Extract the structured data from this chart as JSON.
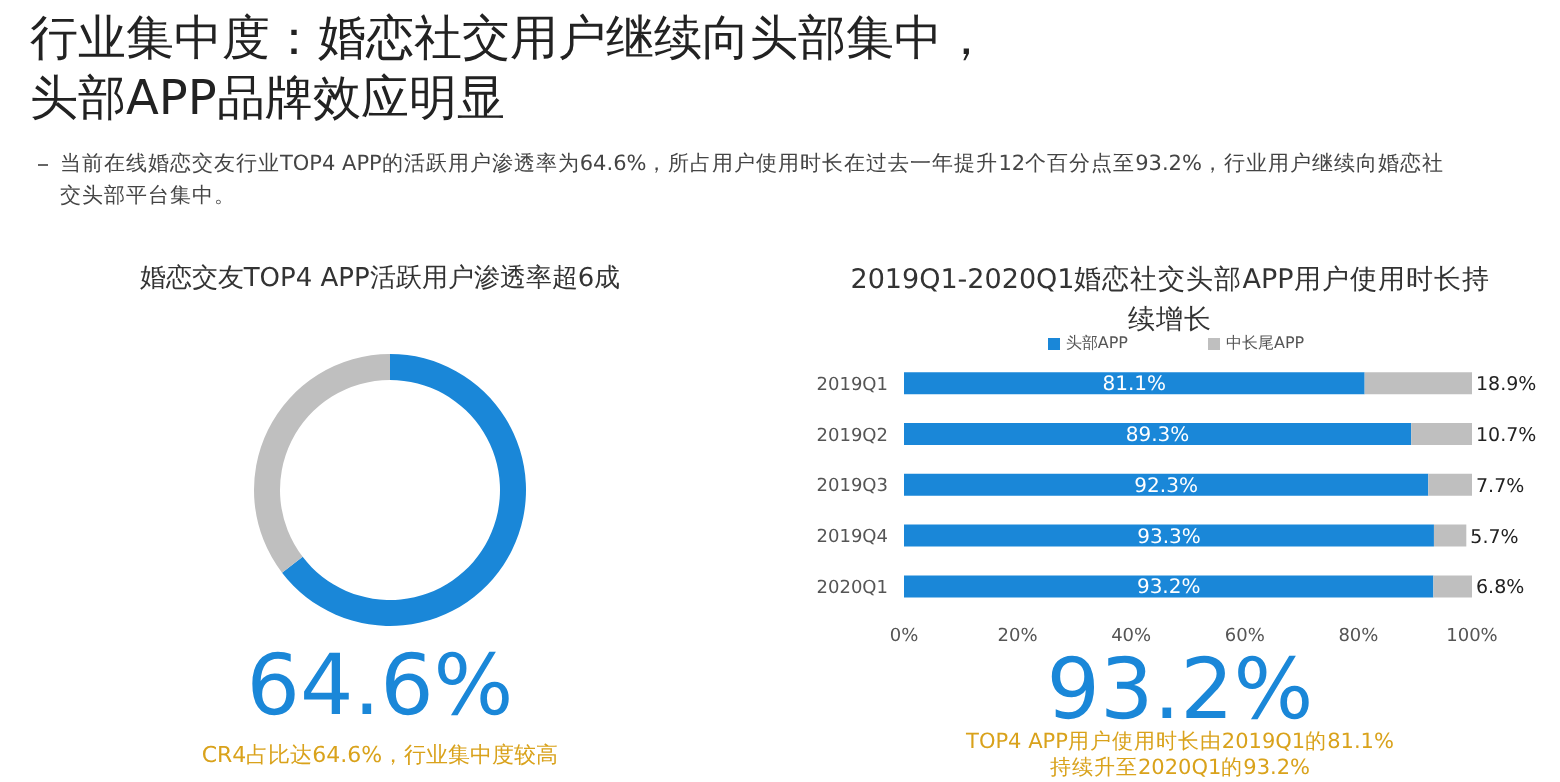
{
  "chart_data": [
    {
      "type": "donut",
      "title": "婚恋交友TOP4 APP活跃用户渗透率超6成",
      "categories": [
        null,
        null
      ],
      "values": [
        64.6,
        35.4
      ],
      "colors": [
        "#1a87d8",
        "#bfbfbf"
      ],
      "legend": false,
      "annotations": [
        "行业集中度：婚恋社交用户继续向头部集中，",
        "头部APP品牌效应明显",
        "当前在线婚恋交友行业TOP4 APP的活跃用户渗透率为64.6%，所占用户使用时长在过去一年提升12个百分点至93.2%，行业用户继续向婚恋社交头部平台集中。",
        "64.6%",
        "CR4占比达64.6%，行业集中度较高"
      ]
    },
    {
      "type": "bar",
      "orientation": "horizontal",
      "stacked": true,
      "title": "2019Q1-2020Q1婚恋社交头部APP用户使用时长持续增长",
      "categories": [
        "2019Q1",
        "2019Q2",
        "2019Q3",
        "2019Q4",
        "2020Q1"
      ],
      "series": [
        {
          "name": "头部APP",
          "color": "#1a87d8",
          "values": [
            81.1,
            89.3,
            92.3,
            93.3,
            93.2
          ],
          "value_labels": [
            "81.1%",
            "89.3%",
            "92.3%",
            "93.3%",
            "93.2%"
          ]
        },
        {
          "name": "中长尾APP",
          "color": "#bfbfbf",
          "values": [
            18.9,
            10.7,
            7.7,
            5.7,
            6.8
          ],
          "value_labels": [
            "18.9%",
            "10.7%",
            "7.7%",
            "5.7%",
            "6.8%"
          ]
        }
      ],
      "xlim": [
        0,
        100
      ],
      "xticks": [
        {
          "value": 0,
          "label": "0%"
        },
        {
          "value": 20,
          "label": "20%"
        },
        {
          "value": 40,
          "label": "40%"
        },
        {
          "value": 60,
          "label": "60%"
        },
        {
          "value": 80,
          "label": "80%"
        },
        {
          "value": 100,
          "label": "100%"
        }
      ],
      "grid": false,
      "legend": "top",
      "annotations": [
        "93.2%",
        "TOP4 APP用户使用时长由2019Q1的81.1%",
        "持续升至2020Q1的93.2%"
      ]
    }
  ]
}
